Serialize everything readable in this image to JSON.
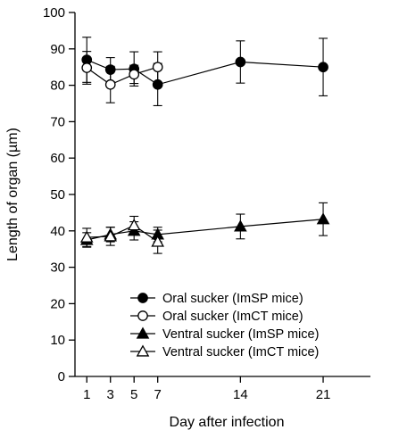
{
  "chart_data": {
    "type": "line",
    "title": "",
    "xlabel": "Day after infection",
    "ylabel": "Length of organ (µm)",
    "xlim": [
      0,
      25
    ],
    "ylim": [
      0,
      100
    ],
    "xticks": [
      1,
      3,
      5,
      7,
      14,
      21
    ],
    "yticks": [
      0,
      10,
      20,
      30,
      40,
      50,
      60,
      70,
      80,
      90,
      100
    ],
    "grid": false,
    "legend_position": "bottom-center",
    "series": [
      {
        "name": "Oral sucker (ImSP mice)",
        "marker": "circle-filled",
        "x": [
          1,
          3,
          5,
          7,
          14,
          21
        ],
        "y": [
          87,
          84.3,
          84.5,
          80.2,
          86.4,
          85
        ],
        "err": [
          6.2,
          3.3,
          4.7,
          5.8,
          5.8,
          7.9
        ]
      },
      {
        "name": "Oral sucker (ImCT mice)",
        "marker": "circle-open",
        "x": [
          1,
          3,
          5,
          7
        ],
        "y": [
          84.8,
          80.2,
          83,
          85
        ],
        "err": [
          4.5,
          5,
          2.5,
          4.2
        ]
      },
      {
        "name": "Ventral sucker (ImSP mice)",
        "marker": "triangle-filled",
        "x": [
          1,
          3,
          5,
          7,
          14,
          21
        ],
        "y": [
          37.5,
          39,
          40,
          39,
          41.2,
          43.2
        ],
        "err": [
          2,
          2,
          2.5,
          2,
          3.4,
          4.5
        ]
      },
      {
        "name": "Ventral sucker (ImCT mice)",
        "marker": "triangle-open",
        "x": [
          1,
          3,
          5,
          7
        ],
        "y": [
          38.2,
          38.5,
          41.5,
          37
        ],
        "err": [
          2.5,
          2.5,
          2.5,
          3.2
        ]
      }
    ]
  }
}
